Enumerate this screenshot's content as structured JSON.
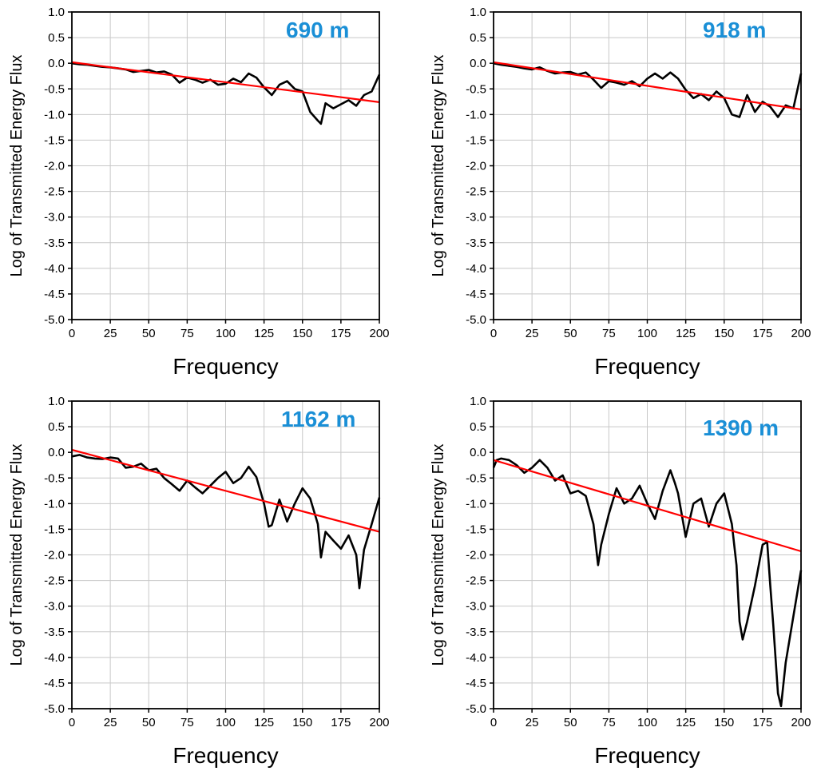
{
  "chart_data": [
    {
      "type": "line",
      "label": "690 m",
      "xlabel": "Frequency",
      "ylabel": "Log of Transmitted Energy Flux",
      "xlim": [
        0,
        200
      ],
      "ylim": [
        -5.0,
        1.0
      ],
      "xticks": [
        "0",
        "25",
        "50",
        "75",
        "100",
        "125",
        "150",
        "175",
        "200"
      ],
      "yticks": [
        "1.0",
        "0.5",
        "0.0",
        "-0.5",
        "-1.0",
        "-1.5",
        "-2.0",
        "-2.5",
        "-3.0",
        "-3.5",
        "-4.0",
        "-4.5",
        "-5.0"
      ],
      "grid": true,
      "series": [
        {
          "color": "#000000",
          "x": [
            0,
            5,
            10,
            15,
            20,
            25,
            30,
            35,
            40,
            45,
            50,
            55,
            60,
            65,
            70,
            75,
            80,
            85,
            90,
            95,
            100,
            105,
            110,
            115,
            120,
            125,
            130,
            135,
            140,
            145,
            150,
            155,
            160,
            162,
            165,
            170,
            175,
            180,
            185,
            190,
            195,
            200
          ],
          "y": [
            0.0,
            -0.02,
            -0.03,
            -0.05,
            -0.07,
            -0.08,
            -0.1,
            -0.12,
            -0.17,
            -0.15,
            -0.13,
            -0.18,
            -0.16,
            -0.22,
            -0.38,
            -0.28,
            -0.32,
            -0.38,
            -0.32,
            -0.42,
            -0.4,
            -0.3,
            -0.37,
            -0.2,
            -0.28,
            -0.47,
            -0.62,
            -0.42,
            -0.35,
            -0.5,
            -0.55,
            -0.95,
            -1.12,
            -1.18,
            -0.78,
            -0.88,
            -0.8,
            -0.72,
            -0.83,
            -0.62,
            -0.55,
            -0.22
          ]
        },
        {
          "color": "#ff0000",
          "x": [
            0,
            200
          ],
          "y": [
            0.02,
            -0.76
          ]
        }
      ]
    },
    {
      "type": "line",
      "label": "918 m",
      "xlabel": "Frequency",
      "ylabel": "Log of Transmitted Energy Flux",
      "xlim": [
        0,
        200
      ],
      "ylim": [
        -5.0,
        1.0
      ],
      "xticks": [
        "0",
        "25",
        "50",
        "75",
        "100",
        "125",
        "150",
        "175",
        "200"
      ],
      "yticks": [
        "1.0",
        "0.5",
        "0.0",
        "-0.5",
        "-1.0",
        "-1.5",
        "-2.0",
        "-2.5",
        "-3.0",
        "-3.5",
        "-4.0",
        "-4.5",
        "-5.0"
      ],
      "grid": true,
      "series": [
        {
          "color": "#000000",
          "x": [
            0,
            5,
            10,
            15,
            20,
            25,
            30,
            35,
            40,
            45,
            50,
            55,
            60,
            65,
            70,
            75,
            80,
            85,
            90,
            95,
            100,
            105,
            110,
            115,
            120,
            125,
            130,
            135,
            140,
            145,
            150,
            155,
            160,
            165,
            170,
            175,
            180,
            185,
            190,
            195,
            200
          ],
          "y": [
            0.0,
            -0.03,
            -0.05,
            -0.07,
            -0.1,
            -0.12,
            -0.08,
            -0.15,
            -0.2,
            -0.18,
            -0.17,
            -0.22,
            -0.18,
            -0.32,
            -0.48,
            -0.35,
            -0.38,
            -0.42,
            -0.35,
            -0.45,
            -0.3,
            -0.2,
            -0.3,
            -0.18,
            -0.3,
            -0.52,
            -0.68,
            -0.6,
            -0.72,
            -0.55,
            -0.68,
            -1.0,
            -1.05,
            -0.62,
            -0.95,
            -0.75,
            -0.85,
            -1.05,
            -0.82,
            -0.88,
            -0.2
          ]
        },
        {
          "color": "#ff0000",
          "x": [
            0,
            200
          ],
          "y": [
            0.02,
            -0.9
          ]
        }
      ]
    },
    {
      "type": "line",
      "label": "1162 m",
      "xlabel": "Frequency",
      "ylabel": "Log of Transmitted Energy Flux",
      "xlim": [
        0,
        200
      ],
      "ylim": [
        -5.0,
        1.0
      ],
      "xticks": [
        "0",
        "25",
        "50",
        "75",
        "100",
        "125",
        "150",
        "175",
        "200"
      ],
      "yticks": [
        "1.0",
        "0.5",
        "0.0",
        "-0.5",
        "-1.0",
        "-1.5",
        "-2.0",
        "-2.5",
        "-3.0",
        "-3.5",
        "-4.0",
        "-4.5",
        "-5.0"
      ],
      "grid": true,
      "series": [
        {
          "color": "#000000",
          "x": [
            0,
            5,
            10,
            15,
            20,
            25,
            30,
            35,
            40,
            45,
            50,
            55,
            60,
            65,
            70,
            75,
            80,
            85,
            90,
            95,
            100,
            105,
            110,
            115,
            120,
            125,
            128,
            130,
            135,
            140,
            145,
            150,
            155,
            160,
            162,
            165,
            170,
            175,
            180,
            185,
            187,
            190,
            195,
            200
          ],
          "y": [
            -0.08,
            -0.05,
            -0.1,
            -0.12,
            -0.13,
            -0.1,
            -0.12,
            -0.3,
            -0.28,
            -0.22,
            -0.35,
            -0.32,
            -0.5,
            -0.62,
            -0.75,
            -0.55,
            -0.68,
            -0.8,
            -0.65,
            -0.5,
            -0.38,
            -0.6,
            -0.5,
            -0.28,
            -0.48,
            -1.0,
            -1.45,
            -1.42,
            -0.92,
            -1.35,
            -1.0,
            -0.7,
            -0.9,
            -1.4,
            -2.05,
            -1.55,
            -1.72,
            -1.88,
            -1.62,
            -2.0,
            -2.65,
            -1.9,
            -1.4,
            -0.88
          ]
        },
        {
          "color": "#ff0000",
          "x": [
            0,
            200
          ],
          "y": [
            0.05,
            -1.55
          ]
        }
      ]
    },
    {
      "type": "line",
      "label": "1390 m",
      "xlabel": "Frequency",
      "ylabel": "Log of Transmitted Energy Flux",
      "xlim": [
        0,
        200
      ],
      "ylim": [
        -5.0,
        1.0
      ],
      "xticks": [
        "0",
        "25",
        "50",
        "75",
        "100",
        "125",
        "150",
        "175",
        "200"
      ],
      "yticks": [
        "1.0",
        "0.5",
        "0.0",
        "-0.5",
        "-1.0",
        "-1.5",
        "-2.0",
        "-2.5",
        "-3.0",
        "-3.5",
        "-4.0",
        "-4.5",
        "-5.0"
      ],
      "grid": true,
      "series": [
        {
          "color": "#000000",
          "x": [
            0,
            2,
            5,
            10,
            15,
            20,
            25,
            30,
            35,
            40,
            45,
            50,
            55,
            60,
            65,
            68,
            70,
            75,
            80,
            85,
            90,
            95,
            100,
            105,
            110,
            115,
            118,
            120,
            125,
            130,
            135,
            140,
            145,
            150,
            155,
            158,
            160,
            162,
            165,
            170,
            175,
            178,
            180,
            182,
            185,
            187,
            190,
            195,
            200
          ],
          "y": [
            -0.3,
            -0.15,
            -0.12,
            -0.15,
            -0.25,
            -0.4,
            -0.3,
            -0.15,
            -0.3,
            -0.55,
            -0.45,
            -0.8,
            -0.75,
            -0.85,
            -1.4,
            -2.2,
            -1.8,
            -1.2,
            -0.7,
            -1.0,
            -0.9,
            -0.65,
            -1.0,
            -1.3,
            -0.75,
            -0.35,
            -0.6,
            -0.8,
            -1.65,
            -1.0,
            -0.9,
            -1.45,
            -1.0,
            -0.8,
            -1.4,
            -2.2,
            -3.3,
            -3.65,
            -3.3,
            -2.6,
            -1.8,
            -1.75,
            -2.6,
            -3.4,
            -4.7,
            -4.95,
            -4.1,
            -3.2,
            -2.3
          ]
        },
        {
          "color": "#ff0000",
          "x": [
            0,
            200
          ],
          "y": [
            -0.15,
            -1.93
          ]
        }
      ]
    }
  ],
  "colors": {
    "label": "#1a8fd6",
    "fit_line": "#ff0000",
    "data_line": "#000000",
    "grid": "#c8c8c8"
  }
}
